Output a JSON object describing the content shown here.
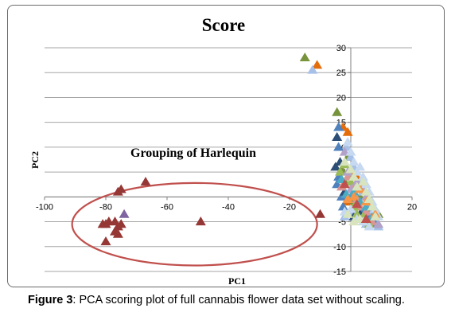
{
  "caption": {
    "label": "Figure 3",
    "text": ": PCA scoring plot of full cannabis flower data set without scaling."
  },
  "chart_data": {
    "type": "scatter",
    "title": "Score",
    "xlabel": "PC1",
    "ylabel": "PC2",
    "xlim": [
      -100,
      20
    ],
    "ylim": [
      -15,
      30
    ],
    "xticks": [
      -100,
      -80,
      -60,
      -40,
      -20,
      0,
      20
    ],
    "yticks": [
      -15,
      -10,
      -5,
      0,
      5,
      10,
      15,
      20,
      25,
      30
    ],
    "grid": "horizontal",
    "annotation": "Grouping  of Harlequin",
    "annotation_ellipse": {
      "cx": -51,
      "cy": -5.5,
      "rx": 40,
      "ry": 8.3,
      "color": "#c0504d"
    },
    "marker": "triangle",
    "series": [
      {
        "color": "#953735",
        "points": [
          [
            -76,
            1
          ],
          [
            -75,
            1.5
          ],
          [
            -67,
            3
          ],
          [
            -81,
            -5.5
          ],
          [
            -79,
            -5
          ],
          [
            -77,
            -5
          ],
          [
            -80,
            -5.5
          ],
          [
            -76,
            -6
          ],
          [
            -75,
            -5.5
          ],
          [
            -77,
            -7
          ],
          [
            -76,
            -7.5
          ],
          [
            -80,
            -9
          ],
          [
            -49,
            -5
          ],
          [
            -10,
            -3.5
          ]
        ]
      },
      {
        "color": "#8064a2",
        "points": [
          [
            -74,
            -3.5
          ]
        ]
      },
      {
        "color": "#77933c",
        "points": [
          [
            -15,
            28
          ],
          [
            -4.5,
            17
          ],
          [
            -3,
            5.5
          ],
          [
            -2,
            3
          ],
          [
            -1,
            8
          ],
          [
            0,
            -1
          ],
          [
            3,
            0
          ],
          [
            6,
            -2.5
          ],
          [
            9,
            -3.5
          ]
        ]
      },
      {
        "color": "#e46c0a",
        "points": [
          [
            -11,
            26.5
          ],
          [
            -2.5,
            14
          ],
          [
            -1,
            13
          ],
          [
            -1.5,
            -1
          ],
          [
            0.5,
            5
          ],
          [
            2,
            4
          ],
          [
            7,
            -4.5
          ]
        ]
      },
      {
        "color": "#a6c0e8",
        "points": [
          [
            -12.5,
            25.5
          ],
          [
            -1.5,
            10
          ],
          [
            0,
            8
          ],
          [
            1,
            6
          ],
          [
            3,
            3
          ],
          [
            4,
            1
          ],
          [
            6,
            -0.5
          ],
          [
            7,
            -3
          ],
          [
            8,
            -5
          ],
          [
            9,
            -6
          ],
          [
            1,
            -3
          ],
          [
            2,
            -2
          ],
          [
            5,
            -5.5
          ],
          [
            -2,
            -4
          ]
        ]
      },
      {
        "color": "#4f81bd",
        "points": [
          [
            -4,
            14
          ],
          [
            -4,
            10
          ],
          [
            -4.5,
            2.5
          ],
          [
            -4,
            4
          ],
          [
            -3,
            0
          ],
          [
            -2.5,
            -2
          ],
          [
            0,
            0
          ],
          [
            2,
            -1
          ],
          [
            4,
            -3
          ],
          [
            5,
            -4
          ],
          [
            6,
            -4.5
          ],
          [
            8,
            -5.5
          ]
        ]
      },
      {
        "color": "#2c4d75",
        "points": [
          [
            -4.5,
            12
          ],
          [
            -5,
            6
          ],
          [
            -3.5,
            7
          ],
          [
            -2,
            1
          ],
          [
            1,
            -4
          ],
          [
            3,
            -3.5
          ]
        ]
      },
      {
        "color": "#d99694",
        "points": [
          [
            -3,
            2
          ],
          [
            -1,
            4
          ],
          [
            0.5,
            2
          ],
          [
            2,
            -0.5
          ],
          [
            3,
            -2
          ],
          [
            5,
            -3
          ],
          [
            7,
            -5
          ]
        ]
      },
      {
        "color": "#9bbb59",
        "points": [
          [
            -3.5,
            5
          ],
          [
            -2,
            6.5
          ],
          [
            0,
            3
          ],
          [
            1,
            -2
          ],
          [
            2,
            -3.5
          ],
          [
            4,
            -4
          ],
          [
            6,
            -5.5
          ]
        ]
      },
      {
        "color": "#b3a2c7",
        "points": [
          [
            -2,
            9
          ],
          [
            -1,
            5
          ],
          [
            0,
            1.5
          ],
          [
            2,
            3
          ],
          [
            4,
            2
          ],
          [
            5,
            0
          ],
          [
            6,
            -2
          ],
          [
            9,
            -5.5
          ]
        ]
      },
      {
        "color": "#4bacc6",
        "points": [
          [
            -3,
            3.5
          ],
          [
            -1.5,
            0.5
          ],
          [
            1,
            1
          ],
          [
            3,
            -1
          ],
          [
            5,
            -2
          ],
          [
            7,
            -4
          ]
        ]
      },
      {
        "color": "#c6d9f1",
        "points": [
          [
            -1,
            11
          ],
          [
            0,
            9
          ],
          [
            1,
            7
          ],
          [
            2,
            5
          ],
          [
            3,
            6
          ],
          [
            4,
            4
          ],
          [
            5,
            2.5
          ],
          [
            6,
            1
          ],
          [
            7,
            -1
          ],
          [
            8,
            -2.5
          ],
          [
            9,
            -4
          ],
          [
            -2,
            -3
          ],
          [
            0,
            -2.5
          ],
          [
            2,
            -4.5
          ],
          [
            4,
            -5
          ],
          [
            6,
            -6
          ]
        ]
      },
      {
        "color": "#f79646",
        "points": [
          [
            -1,
            -0.5
          ],
          [
            1,
            0
          ],
          [
            3,
            1.5
          ],
          [
            5,
            -1
          ],
          [
            8,
            -3.5
          ]
        ]
      },
      {
        "color": "#d7e4bd",
        "points": [
          [
            -2,
            7
          ],
          [
            0,
            5.5
          ],
          [
            1,
            4
          ],
          [
            2,
            2
          ],
          [
            4,
            3
          ],
          [
            5,
            1
          ],
          [
            6,
            -0.5
          ],
          [
            7,
            -2
          ],
          [
            8,
            -4
          ],
          [
            1,
            -5
          ],
          [
            3,
            -4.5
          ],
          [
            -1,
            -3.5
          ]
        ]
      },
      {
        "color": "#c0504d",
        "points": [
          [
            -2,
            2.5
          ],
          [
            2,
            -1.5
          ],
          [
            5,
            -4.5
          ]
        ]
      }
    ]
  }
}
